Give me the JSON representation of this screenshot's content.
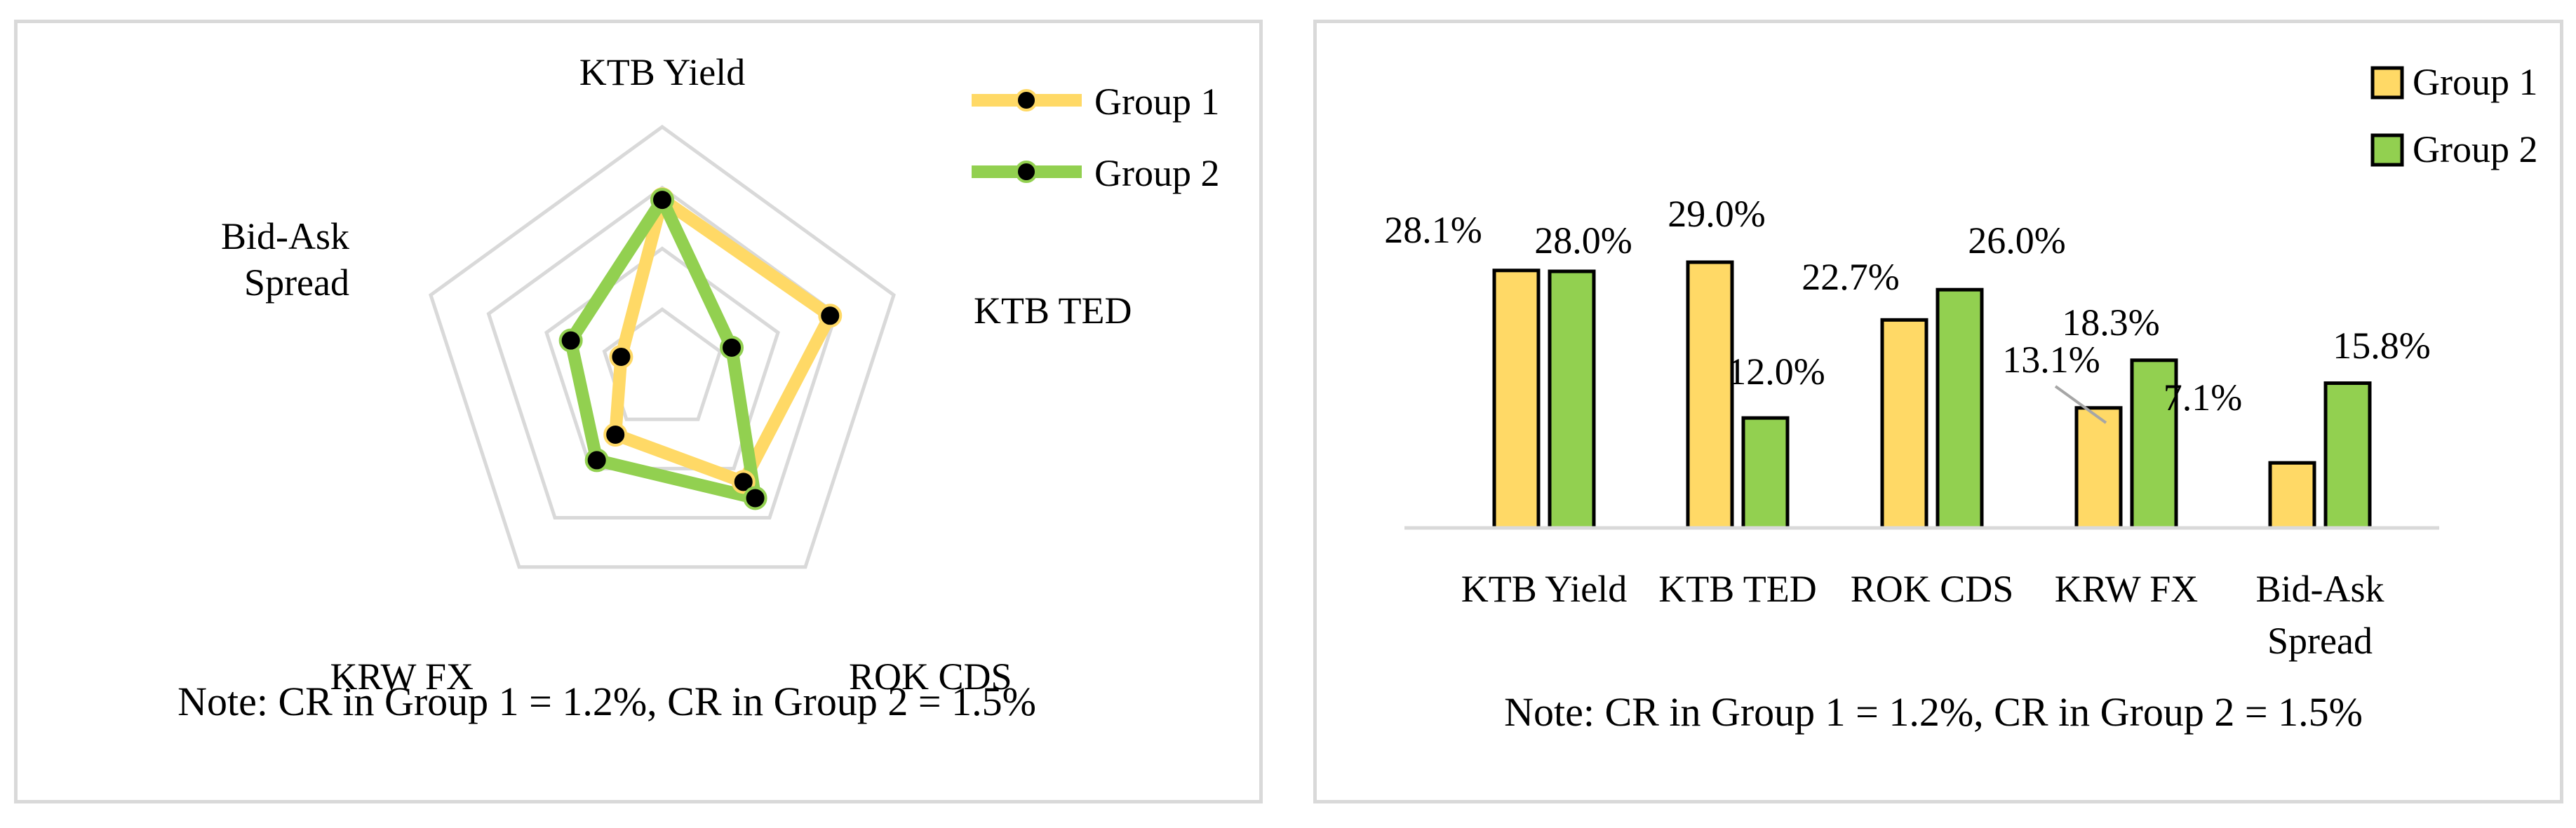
{
  "colors": {
    "group1": "#ffd966",
    "group2": "#92d050",
    "grid": "#d9d9d9",
    "marker": "#000000"
  },
  "chart_data": [
    {
      "type": "radar",
      "axes": [
        "KTB Yield",
        "KTB TED",
        "ROK CDS",
        "KRW FX",
        "Bid-Ask Spread"
      ],
      "axis_label_lines": [
        [
          "KTB Yield"
        ],
        [
          "KTB TED"
        ],
        [
          "ROK CDS"
        ],
        [
          "KRW FX"
        ],
        [
          "Bid-Ask",
          "Spread"
        ]
      ],
      "rmax": 40,
      "grid_levels": [
        10,
        20,
        30,
        40
      ],
      "legend": [
        "Group 1",
        "Group 2"
      ],
      "legend_position": "top-right",
      "series": [
        {
          "name": "Group 1",
          "values": [
            28.1,
            29.0,
            22.7,
            13.1,
            7.1
          ]
        },
        {
          "name": "Group 2",
          "values": [
            28.0,
            12.0,
            26.0,
            18.3,
            15.8
          ]
        }
      ],
      "note": "Note: CR in Group 1 = 1.2%, CR in Group 2 = 1.5%"
    },
    {
      "type": "bar",
      "categories": [
        "KTB Yield",
        "KTB TED",
        "ROK CDS",
        "KRW FX",
        "Bid-Ask Spread"
      ],
      "category_label_lines": [
        [
          "KTB Yield"
        ],
        [
          "KTB TED"
        ],
        [
          "ROK CDS"
        ],
        [
          "KRW FX"
        ],
        [
          "Bid-Ask",
          "Spread"
        ]
      ],
      "ylim": [
        0,
        32
      ],
      "legend": [
        "Group 1",
        "Group 2"
      ],
      "legend_position": "top-right",
      "series": [
        {
          "name": "Group 1",
          "values": [
            28.1,
            29.0,
            22.7,
            13.1,
            7.1
          ],
          "labels": [
            "28.1%",
            "29.0%",
            "22.7%",
            "13.1%",
            "7.1%"
          ]
        },
        {
          "name": "Group 2",
          "values": [
            28.0,
            12.0,
            26.0,
            18.3,
            15.8
          ],
          "labels": [
            "28.0%",
            "12.0%",
            "26.0%",
            "18.3%",
            "15.8%"
          ]
        }
      ],
      "note": "Note: CR in Group 1 = 1.2%, CR in Group 2 = 1.5%"
    }
  ]
}
